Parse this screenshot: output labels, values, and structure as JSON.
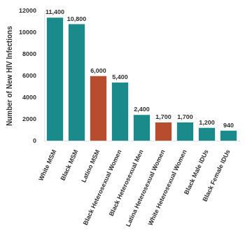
{
  "chart_data": {
    "type": "bar",
    "categories": [
      "White MSM",
      "Black MSM",
      "Latino MSM",
      "Black Heterosexual Women",
      "Black Heterosexual Men",
      "Latina Heterosexual Women",
      "White Heterosexual Women",
      "Black Male IDUs",
      "Black Female IDUs"
    ],
    "values": [
      11400,
      10800,
      6000,
      5400,
      2400,
      1700,
      1700,
      1200,
      940
    ],
    "value_labels": [
      "11,400",
      "10,800",
      "6,000",
      "5,400",
      "2,400",
      "1,700",
      "1,700",
      "1,200",
      "940"
    ],
    "data_labels": true,
    "colors": [
      "#1a8a8a",
      "#1a8a8a",
      "#b84c2e",
      "#1a8a8a",
      "#1a8a8a",
      "#b84c2e",
      "#1a8a8a",
      "#1a8a8a",
      "#1a8a8a"
    ],
    "ylabel": "Number of New HIV Infections",
    "ylim": [
      0,
      12000
    ],
    "yticks": [
      0,
      2000,
      4000,
      6000,
      8000,
      10000,
      12000
    ],
    "grid": false,
    "legend": false
  }
}
